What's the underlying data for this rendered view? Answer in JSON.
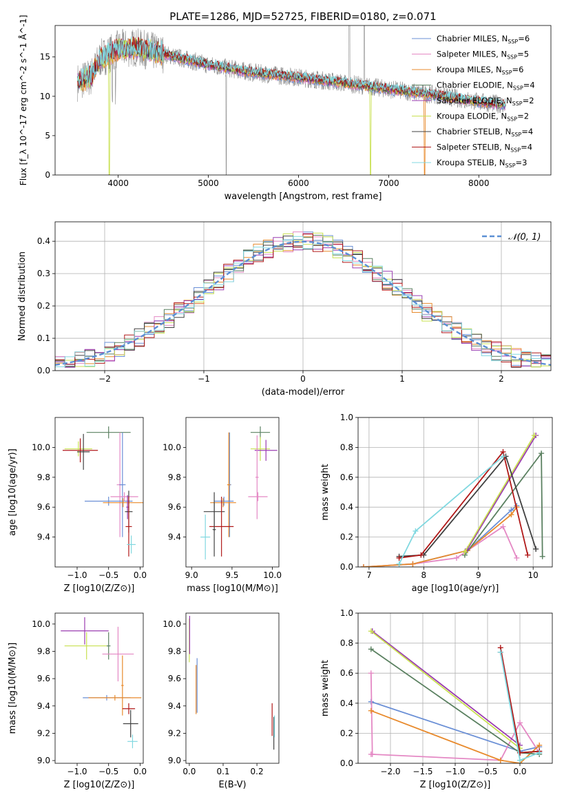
{
  "figure": {
    "title": "PLATE=1286, MJD=52725, FIBERID=0180, z=0.071",
    "series_colors": [
      "#6a8fd6",
      "#e488c4",
      "#e88a2c",
      "#5a8060",
      "#9a3bb0",
      "#c8e050",
      "#404040",
      "#b01818",
      "#80d8e0"
    ]
  },
  "chart_data": [
    {
      "id": "spectrum",
      "type": "line",
      "xlabel": "wavelength [Angstrom, rest frame]",
      "ylabel": "Flux [f_λ 10^-17 erg cm^-2 s^-1 Å^-1]",
      "xlim": [
        3300,
        8800
      ],
      "ylim": [
        0,
        19
      ],
      "xticks": [
        4000,
        5000,
        6000,
        7000,
        8000
      ],
      "yticks": [
        0,
        5,
        10,
        15
      ],
      "legend_position": "upper right",
      "legend": [
        {
          "base": "Chabrier MILES, N",
          "sub": "SSP",
          "tail": "=6",
          "color": "#6a8fd6"
        },
        {
          "base": "Salpeter MILES, N",
          "sub": "SSP",
          "tail": "=5",
          "color": "#e488c4"
        },
        {
          "base": "Kroupa MILES, N",
          "sub": "SSP",
          "tail": "=6",
          "color": "#e88a2c"
        },
        {
          "base": "Chabrier ELODIE, N",
          "sub": "SSP",
          "tail": "=4",
          "color": "#5a8060"
        },
        {
          "base": "Salpeter ELODIE, N",
          "sub": "SSP",
          "tail": "=2",
          "color": "#9a3bb0"
        },
        {
          "base": "Kroupa ELODIE, N",
          "sub": "SSP",
          "tail": "=2",
          "color": "#c8e050"
        },
        {
          "base": "Chabrier STELIB, N",
          "sub": "SSP",
          "tail": "=4",
          "color": "#404040"
        },
        {
          "base": "Salpeter STELIB, N",
          "sub": "SSP",
          "tail": "=4",
          "color": "#b01818"
        },
        {
          "base": "Kroupa STELIB, N",
          "sub": "SSP",
          "tail": "=3",
          "color": "#80d8e0"
        }
      ],
      "continuum": [
        [
          3550,
          11.8
        ],
        [
          3700,
          12.5
        ],
        [
          3800,
          14.8
        ],
        [
          4000,
          16.0
        ],
        [
          4200,
          16.2
        ],
        [
          4500,
          15.4
        ],
        [
          5000,
          14.0
        ],
        [
          5500,
          13.0
        ],
        [
          6000,
          12.4
        ],
        [
          6500,
          11.7
        ],
        [
          7000,
          10.9
        ],
        [
          7500,
          10.2
        ],
        [
          8000,
          9.3
        ],
        [
          8300,
          8.9
        ]
      ],
      "data_color": "#888888"
    },
    {
      "id": "residuals",
      "type": "step",
      "xlabel": "(data-model)/error",
      "ylabel": "Normed distribution",
      "xlim": [
        -2.5,
        2.5
      ],
      "ylim": [
        0,
        0.46
      ],
      "xticks": [
        -2,
        -1,
        0,
        1,
        2
      ],
      "yticks": [
        0.0,
        0.1,
        0.2,
        0.3,
        0.4
      ],
      "gaussian_label": "𝒩(0, 1)",
      "gaussian_color": "#5b8fd4",
      "legend_position": "upper right",
      "bin_width": 0.1
    },
    {
      "id": "z-age",
      "type": "errorbar",
      "xlabel": "Z [log10(Z/Z⊙)]",
      "ylabel": "age [log10(age/yr)]",
      "xlim": [
        -1.35,
        0.05
      ],
      "ylim": [
        9.2,
        10.2
      ],
      "xticks": [
        -1.0,
        -0.5,
        0.0
      ],
      "yticks": [
        9.4,
        9.6,
        9.8,
        10.0
      ],
      "points": [
        {
          "x": -0.5,
          "xe": 0.35,
          "y": 10.1,
          "ye": 0.04,
          "color": "#5a8060"
        },
        {
          "x": -0.98,
          "xe": 0.22,
          "y": 9.99,
          "ye": 0.05,
          "color": "#c8e050"
        },
        {
          "x": -0.95,
          "xe": 0.28,
          "y": 9.98,
          "ye": 0.08,
          "color": "#b01818"
        },
        {
          "x": -0.9,
          "xe": 0.1,
          "y": 9.97,
          "ye": 0.12,
          "color": "#404040"
        },
        {
          "x": -0.32,
          "xe": 0.05,
          "y": 9.75,
          "ye": 0.35,
          "color": "#e488c4"
        },
        {
          "x": -0.28,
          "xe": 0.05,
          "y": 9.75,
          "ye": 0.35,
          "color": "#6a8fd6"
        },
        {
          "x": -0.5,
          "xe": 0.38,
          "y": 9.64,
          "ye": 0.03,
          "color": "#6a8fd6"
        },
        {
          "x": -0.25,
          "xe": 0.22,
          "y": 9.67,
          "ye": 0.03,
          "color": "#e488c4"
        },
        {
          "x": -0.27,
          "xe": 0.32,
          "y": 9.63,
          "ye": 0.03,
          "color": "#e88a2c"
        },
        {
          "x": -0.2,
          "xe": 0.02,
          "y": 9.6,
          "ye": 0.08,
          "color": "#9a3bb0"
        },
        {
          "x": -0.18,
          "xe": 0.06,
          "y": 9.57,
          "ye": 0.14,
          "color": "#404040"
        },
        {
          "x": -0.18,
          "xe": 0.05,
          "y": 9.47,
          "ye": 0.2,
          "color": "#b01818"
        },
        {
          "x": -0.14,
          "xe": 0.07,
          "y": 9.35,
          "ye": 0.06,
          "color": "#80d8e0"
        }
      ]
    },
    {
      "id": "mass-age",
      "type": "errorbar",
      "xlabel": "mass [log10(M/M⊙)]",
      "ylabel": "",
      "xlim": [
        8.93,
        10.08
      ],
      "ylim": [
        9.2,
        10.2
      ],
      "xticks": [
        9.0,
        9.5,
        10.0
      ],
      "yticks": [
        9.4,
        9.6,
        9.8,
        10.0
      ],
      "points": [
        {
          "x": 9.85,
          "xe": 0.12,
          "y": 10.1,
          "ye": 0.04,
          "color": "#5a8060"
        },
        {
          "x": 9.85,
          "xe": 0.12,
          "y": 9.99,
          "ye": 0.08,
          "color": "#c8e050"
        },
        {
          "x": 9.92,
          "xe": 0.14,
          "y": 9.98,
          "ye": 0.07,
          "color": "#9a3bb0"
        },
        {
          "x": 9.47,
          "xe": 0.02,
          "y": 9.75,
          "ye": 0.35,
          "color": "#6a8fd6"
        },
        {
          "x": 9.46,
          "xe": 0.02,
          "y": 9.75,
          "ye": 0.35,
          "color": "#e88a2c"
        },
        {
          "x": 9.81,
          "xe": 0.02,
          "y": 9.8,
          "ye": 0.28,
          "color": "#e488c4"
        },
        {
          "x": 9.82,
          "xe": 0.12,
          "y": 9.67,
          "ye": 0.03,
          "color": "#e488c4"
        },
        {
          "x": 9.4,
          "xe": 0.12,
          "y": 9.64,
          "ye": 0.03,
          "color": "#6a8fd6"
        },
        {
          "x": 9.39,
          "xe": 0.16,
          "y": 9.63,
          "ye": 0.03,
          "color": "#e88a2c"
        },
        {
          "x": 9.28,
          "xe": 0.13,
          "y": 9.57,
          "ye": 0.13,
          "color": "#404040"
        },
        {
          "x": 9.37,
          "xe": 0.15,
          "y": 9.47,
          "ye": 0.2,
          "color": "#b01818"
        },
        {
          "x": 9.17,
          "xe": 0.06,
          "y": 9.4,
          "ye": 0.15,
          "color": "#80d8e0"
        },
        {
          "x": 9.28,
          "xe": 0.02,
          "y": 9.45,
          "ye": 0.18,
          "color": "#404040"
        }
      ]
    },
    {
      "id": "age-weight",
      "type": "line",
      "xlabel": "age [log10(age/yr)]",
      "ylabel": "mass weight",
      "xlim": [
        6.8,
        10.35
      ],
      "ylim": [
        0.0,
        1.0
      ],
      "xticks": [
        7,
        8,
        9,
        10
      ],
      "yticks": [
        0.0,
        0.2,
        0.4,
        0.6,
        0.8,
        1.0
      ],
      "series": [
        {
          "color": "#6a8fd6",
          "x": [
            6.9,
            7.8,
            8.8,
            9.6,
            9.7
          ],
          "y": [
            0.0,
            0.02,
            0.11,
            0.38,
            0.41
          ]
        },
        {
          "color": "#e488c4",
          "x": [
            6.9,
            7.8,
            8.6,
            9.45,
            9.7
          ],
          "y": [
            0.0,
            0.02,
            0.06,
            0.27,
            0.06
          ]
        },
        {
          "color": "#e88a2c",
          "x": [
            6.9,
            7.8,
            8.8,
            9.6,
            9.7
          ],
          "y": [
            0.0,
            0.02,
            0.11,
            0.35,
            0.4
          ]
        },
        {
          "color": "#5a8060",
          "x": [
            8.75,
            10.15,
            10.17
          ],
          "y": [
            0.08,
            0.76,
            0.07
          ]
        },
        {
          "color": "#9a3bb0",
          "x": [
            8.8,
            10.05
          ],
          "y": [
            0.12,
            0.88
          ]
        },
        {
          "color": "#c8e050",
          "x": [
            8.75,
            10.02
          ],
          "y": [
            0.1,
            0.88
          ]
        },
        {
          "color": "#404040",
          "x": [
            7.55,
            8.0,
            9.5,
            10.05
          ],
          "y": [
            0.07,
            0.08,
            0.74,
            0.12
          ]
        },
        {
          "color": "#b01818",
          "x": [
            7.55,
            7.95,
            9.45,
            9.9
          ],
          "y": [
            0.06,
            0.08,
            0.77,
            0.08
          ]
        },
        {
          "color": "#80d8e0",
          "x": [
            7.55,
            7.85,
            9.45
          ],
          "y": [
            0.02,
            0.24,
            0.74
          ]
        }
      ]
    },
    {
      "id": "z-mass",
      "type": "errorbar",
      "xlabel": "Z [log10(Z/Z⊙)]",
      "ylabel": "mass [log10(M/M⊙)]",
      "xlim": [
        -1.35,
        0.05
      ],
      "ylim": [
        8.98,
        10.08
      ],
      "xticks": [
        -1.0,
        -0.5,
        0.0
      ],
      "yticks": [
        9.0,
        9.2,
        9.4,
        9.6,
        9.8,
        10.0
      ],
      "points": [
        {
          "x": -0.88,
          "xe": 0.38,
          "y": 9.95,
          "ye": 0.1,
          "color": "#9a3bb0"
        },
        {
          "x": -0.85,
          "xe": 0.35,
          "y": 9.84,
          "ye": 0.1,
          "color": "#c8e050"
        },
        {
          "x": -0.5,
          "xe": 0.03,
          "y": 9.84,
          "ye": 0.1,
          "color": "#5a8060"
        },
        {
          "x": -0.35,
          "xe": 0.25,
          "y": 9.78,
          "ye": 0.2,
          "color": "#e488c4"
        },
        {
          "x": -0.53,
          "xe": 0.38,
          "y": 9.46,
          "ye": 0.02,
          "color": "#6a8fd6"
        },
        {
          "x": -0.4,
          "xe": 0.42,
          "y": 9.46,
          "ye": 0.02,
          "color": "#e88a2c"
        },
        {
          "x": -0.28,
          "xe": 0.02,
          "y": 9.55,
          "ye": 0.22,
          "color": "#e88a2c"
        },
        {
          "x": -0.18,
          "xe": 0.1,
          "y": 9.38,
          "ye": 0.04,
          "color": "#b01818"
        },
        {
          "x": -0.15,
          "xe": 0.12,
          "y": 9.27,
          "ye": 0.1,
          "color": "#404040"
        },
        {
          "x": -0.12,
          "xe": 0.08,
          "y": 9.14,
          "ye": 0.05,
          "color": "#80d8e0"
        }
      ]
    },
    {
      "id": "ebv-mass",
      "type": "errorbar",
      "xlabel": "E(B-V)",
      "ylabel": "",
      "xlim": [
        -0.01,
        0.265
      ],
      "ylim": [
        8.98,
        10.08
      ],
      "xticks": [
        0.0,
        0.1,
        0.2
      ],
      "yticks": [
        9.0,
        9.2,
        9.4,
        9.6,
        9.8,
        10.0
      ],
      "points": [
        {
          "x": 0.0,
          "xe": 0.0,
          "y": 9.88,
          "ye": 0.16,
          "color": "#c8e050"
        },
        {
          "x": 0.001,
          "xe": 0.0,
          "y": 9.92,
          "ye": 0.14,
          "color": "#9a3bb0"
        },
        {
          "x": 0.02,
          "xe": 0.0,
          "y": 9.52,
          "ye": 0.18,
          "color": "#e88a2c"
        },
        {
          "x": 0.023,
          "xe": 0.0,
          "y": 9.55,
          "ye": 0.2,
          "color": "#6a8fd6"
        },
        {
          "x": 0.245,
          "xe": 0.0,
          "y": 9.3,
          "ye": 0.12,
          "color": "#b01818"
        },
        {
          "x": 0.25,
          "xe": 0.0,
          "y": 9.2,
          "ye": 0.12,
          "color": "#404040"
        },
        {
          "x": 0.252,
          "xe": 0.0,
          "y": 9.25,
          "ye": 0.08,
          "color": "#80d8e0"
        }
      ]
    },
    {
      "id": "z-weight",
      "type": "line",
      "xlabel": "Z [log10(Z/Z⊙)]",
      "ylabel": "mass weight",
      "xlim": [
        -2.5,
        0.5
      ],
      "ylim": [
        0.0,
        1.0
      ],
      "xticks": [
        -2.0,
        -1.5,
        -1.0,
        -0.5,
        0.0
      ],
      "yticks": [
        0.0,
        0.2,
        0.4,
        0.6,
        0.8,
        1.0
      ],
      "series": [
        {
          "color": "#6a8fd6",
          "x": [
            -2.3,
            0.0,
            0.3
          ],
          "y": [
            0.41,
            0.08,
            0.11
          ]
        },
        {
          "color": "#e488c4",
          "x": [
            -2.3,
            -2.28,
            -2.3,
            -0.3,
            0.0,
            0.3
          ],
          "y": [
            0.6,
            0.06,
            0.06,
            0.02,
            0.27,
            0.07
          ]
        },
        {
          "color": "#e88a2c",
          "x": [
            -2.3,
            -0.3,
            0.0,
            0.3
          ],
          "y": [
            0.35,
            0.02,
            0.0,
            0.12
          ]
        },
        {
          "color": "#5a8060",
          "x": [
            -2.3,
            0.0,
            0.3
          ],
          "y": [
            0.76,
            0.07,
            0.06
          ]
        },
        {
          "color": "#9a3bb0",
          "x": [
            -2.28,
            0.0
          ],
          "y": [
            0.88,
            0.12
          ]
        },
        {
          "color": "#c8e050",
          "x": [
            -2.3,
            0.0
          ],
          "y": [
            0.88,
            0.1
          ]
        },
        {
          "color": "#404040",
          "x": [
            -0.3,
            0.0,
            0.3
          ],
          "y": [
            0.74,
            0.07,
            0.08
          ]
        },
        {
          "color": "#b01818",
          "x": [
            -0.3,
            0.0,
            0.3
          ],
          "y": [
            0.77,
            0.07,
            0.08
          ]
        },
        {
          "color": "#80d8e0",
          "x": [
            -0.3,
            0.0,
            0.3
          ],
          "y": [
            0.74,
            0.02,
            0.07
          ]
        }
      ]
    }
  ]
}
